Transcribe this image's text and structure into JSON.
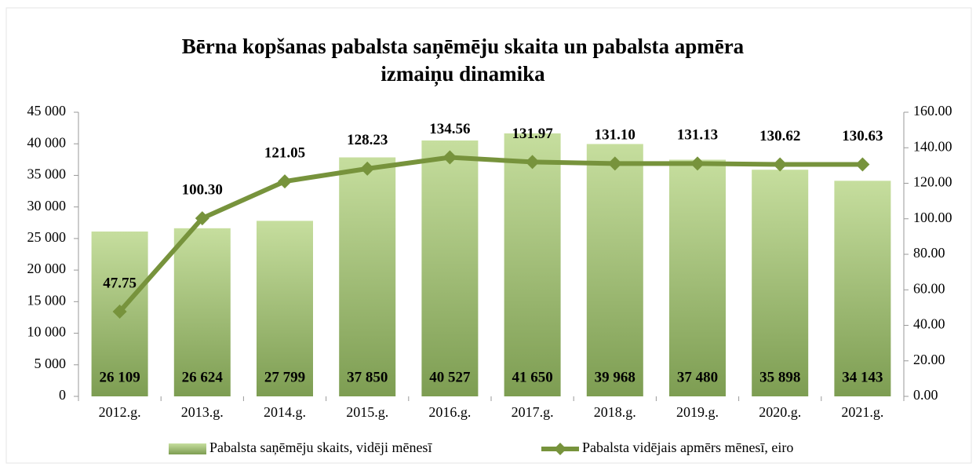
{
  "chart_data": {
    "type": "combo",
    "title": "Bērna kopšanas  pabalsta saņēmēju skaita un pabalsta apmēra",
    "subtitle": "izmaiņu dinamika",
    "categories": [
      "2012.g.",
      "2013.g.",
      "2014.g.",
      "2015.g.",
      "2016.g.",
      "2017.g.",
      "2018.g.",
      "2019.g.",
      "2020.g.",
      "2021.g."
    ],
    "series": [
      {
        "name": "Pabalsta saņēmēju skaits, vidēji mēnesī",
        "type": "bar",
        "color": "#9bbb59",
        "values": [
          26109,
          26624,
          27799,
          37850,
          40527,
          41650,
          39968,
          37480,
          35898,
          34143
        ],
        "value_labels": [
          "26 109",
          "26 624",
          "27 799",
          "37 850",
          "40 527",
          "41 650",
          "39 968",
          "37 480",
          "35 898",
          "34 143"
        ]
      },
      {
        "name": "Pabalsta vidējais apmērs mēnesī, eiro",
        "type": "line",
        "axis": "y2",
        "color": "#77933c",
        "values": [
          47.75,
          100.3,
          121.05,
          128.23,
          134.56,
          131.97,
          131.1,
          131.13,
          130.62,
          130.63
        ],
        "value_labels": [
          "47.75",
          "100.30",
          "121.05",
          "128.23",
          "134.56",
          "131.97",
          "131.10",
          "131.13",
          "130.62",
          "130.63"
        ]
      }
    ],
    "ylim": [
      0,
      45000
    ],
    "yticks": [
      0,
      {
        "value": 5000,
        "label": "5 000"
      },
      {
        "value": 10000,
        "label": "10 000"
      },
      {
        "value": 15000,
        "label": "15 000"
      },
      {
        "value": 20000,
        "label": "20 000"
      },
      {
        "value": 25000,
        "label": "25 000"
      },
      {
        "value": 30000,
        "label": "30 000"
      },
      {
        "value": 35000,
        "label": "35 000"
      },
      {
        "value": 40000,
        "label": "40 000"
      },
      {
        "value": 45000,
        "label": "45 000"
      }
    ],
    "y2lim": [
      0,
      160
    ],
    "y2ticks": [
      {
        "value": 0,
        "label": "0.00"
      },
      {
        "value": 20,
        "label": "20.00"
      },
      {
        "value": 40,
        "label": "40.00"
      },
      {
        "value": 60,
        "label": "60.00"
      },
      {
        "value": 80,
        "label": "80.00"
      },
      {
        "value": 100,
        "label": "100.00"
      },
      {
        "value": 120,
        "label": "120.00"
      },
      {
        "value": 140,
        "label": "140.00"
      },
      {
        "value": 160,
        "label": "160.00"
      }
    ],
    "legend": "bottom"
  }
}
